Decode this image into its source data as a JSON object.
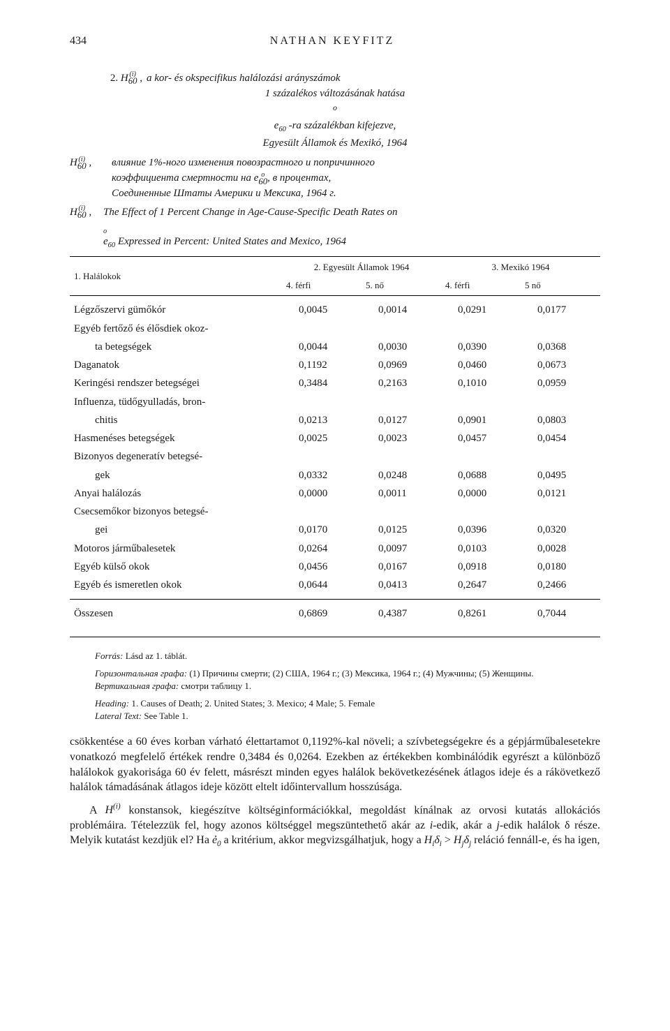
{
  "page_number": "434",
  "author": "NATHAN KEYFITZ",
  "caption": {
    "number": "2.",
    "hu": {
      "formula_prefix": "H",
      "super": "(i)",
      "sub": "60",
      "line1": "a kor- és okspecifikus halálozási arányszámok",
      "line2": "1 százalékos változásának hatása",
      "line3_pre": "e",
      "line3_sub": "60",
      "line3": "-ra százalékban kifejezve,",
      "line4": "Egyesült Államok és Mexikó, 1964"
    },
    "ru": {
      "formula_prefix": "H",
      "super": "(i)",
      "sub": "60",
      "line1": "влияние 1%-ного изменения повозрастного и попричинного",
      "line2_pre": "коэффициента смертности на e",
      "line2_sub": "60",
      "line2_post": ", в процентах,",
      "line3": "Соединенные Штаты Америки и Мексика, 1964 г."
    },
    "en": {
      "formula_prefix": "H",
      "super": "(i)",
      "sub": "60",
      "line1": "The Effect of 1 Percent Change in Age-Cause-Specific Death Rates on",
      "line2_pre": "e",
      "line2_sub": "60",
      "line2_post": " Expressed in Percent: United States and Mexico, 1964"
    }
  },
  "table": {
    "col1_header": "1. Halálokok",
    "group1": "2. Egyesült Államok 1964",
    "group2": "3. Mexikó 1964",
    "sub4": "4. férfi",
    "sub5": "5. nő",
    "sub4b": "4. férfi",
    "sub5b": "5  nő",
    "rows": [
      {
        "label": "Légzőszervi gümőkór",
        "v": [
          "0,0045",
          "0,0014",
          "0,0291",
          "0,0177"
        ],
        "sub": false
      },
      {
        "label": "Egyéb fertőző és élősdiek okoz-",
        "v": [
          "",
          "",
          "",
          ""
        ],
        "sub": false,
        "cont": true
      },
      {
        "label": "ta betegségek",
        "v": [
          "0,0044",
          "0,0030",
          "0,0390",
          "0,0368"
        ],
        "sub": true
      },
      {
        "label": "Daganatok",
        "v": [
          "0,1192",
          "0,0969",
          "0,0460",
          "0,0673"
        ],
        "sub": false
      },
      {
        "label": "Keringési rendszer betegségei",
        "v": [
          "0,3484",
          "0,2163",
          "0,1010",
          "0,0959"
        ],
        "sub": false
      },
      {
        "label": "Influenza, tüdőgyulladás, bron-",
        "v": [
          "",
          "",
          "",
          ""
        ],
        "sub": false,
        "cont": true
      },
      {
        "label": "chitis",
        "v": [
          "0,0213",
          "0,0127",
          "0,0901",
          "0,0803"
        ],
        "sub": true
      },
      {
        "label": "Hasmenéses betegségek",
        "v": [
          "0,0025",
          "0,0023",
          "0,0457",
          "0,0454"
        ],
        "sub": false
      },
      {
        "label": "Bizonyos degeneratív betegsé-",
        "v": [
          "",
          "",
          "",
          ""
        ],
        "sub": false,
        "cont": true
      },
      {
        "label": "gek",
        "v": [
          "0,0332",
          "0,0248",
          "0,0688",
          "0,0495"
        ],
        "sub": true
      },
      {
        "label": "Anyai halálozás",
        "v": [
          "0,0000",
          "0,0011",
          "0,0000",
          "0,0121"
        ],
        "sub": false
      },
      {
        "label": "Csecsemőkor bizonyos betegsé-",
        "v": [
          "",
          "",
          "",
          ""
        ],
        "sub": false,
        "cont": true
      },
      {
        "label": "gei",
        "v": [
          "0,0170",
          "0,0125",
          "0,0396",
          "0,0320"
        ],
        "sub": true
      },
      {
        "label": "Motoros járműbalesetek",
        "v": [
          "0,0264",
          "0,0097",
          "0,0103",
          "0,0028"
        ],
        "sub": false
      },
      {
        "label": "Egyéb külső okok",
        "v": [
          "0,0456",
          "0,0167",
          "0,0918",
          "0,0180"
        ],
        "sub": false
      },
      {
        "label": "Egyéb és ismeretlen okok",
        "v": [
          "0,0644",
          "0,0413",
          "0,2647",
          "0,2466"
        ],
        "sub": false
      }
    ],
    "total": {
      "label": "Összesen",
      "v": [
        "0,6869",
        "0,4387",
        "0,8261",
        "0,7044"
      ]
    }
  },
  "footnotes": {
    "source_hu": "Forrás: Lásd az 1. táblát.",
    "row_ru": "Горизонтальная графа: (1) Причины смерти; (2) США, 1964 г.; (3) Мексика, 1964 г.; (4) Мужчины; (5) Женщины.",
    "col_ru": "Вертикальная графа: смотри таблицу 1.",
    "heading_en": "Heading: 1. Causes of Death; 2. United States; 3. Mexico; 4  Male; 5. Female",
    "lateral_en": "Lateral Text: See Table 1."
  },
  "body": {
    "p1": "csökkentése a 60 éves korban várható élettartamot 0,1192%-kal növeli; a szívbetegségekre és a gépjárműbalesetekre vonatkozó megfelelő értékek rendre 0,3484 és 0,0264. Ezekben az értékekben kombinálódik egyrészt a különböző halálokok gyakorisága 60 év felett, másrészt minden egyes halálok bekövetkezésének átlagos ideje és a rákövetkező halálok támadásának átlagos ideje között eltelt időintervallum hosszúsága.",
    "p2_a": "A ",
    "p2_formula": "H",
    "p2_super": "(i)",
    "p2_b": " konstansok, kiegészítve költséginformációkkal, megoldást kínálnak az orvosi kutatás allokációs problémáira. Tételezzük fel, hogy azonos költséggel megszüntethető akár az ",
    "p2_i": "i",
    "p2_c": "-edik, akár a ",
    "p2_j": "j",
    "p2_d": "-edik halálok δ része. Melyik kutatást kezdjük el? Ha ",
    "p2_e0_pre": "ẻ",
    "p2_e0_sub": "0",
    "p2_e": " a kritérium, akkor megvizsgálhatjuk, hogy a ",
    "p2_rel_a": "H",
    "p2_rel_ai": "i",
    "p2_rel_ad": "δ",
    "p2_rel_adi": "i",
    "p2_gt": " > ",
    "p2_rel_b": "H",
    "p2_rel_bj": "j",
    "p2_rel_bd": "δ",
    "p2_rel_bdj": "j",
    "p2_f": " reláció fennáll-e, és ha igen,"
  }
}
